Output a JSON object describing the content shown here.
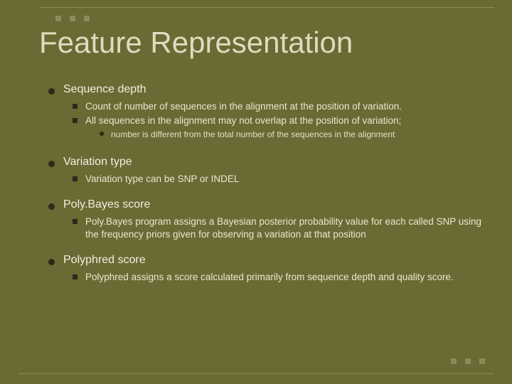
{
  "slide": {
    "bg_color": "#6a6a34",
    "text_color": "#e8e8d0",
    "accent_color": "#8a8a5a",
    "bullet_color": "#2a2a1a",
    "title": "Feature Representation",
    "title_fontsize": 42,
    "body_fontsize": 13.5,
    "sub_fontsize": 12
  },
  "sections": {
    "s1": {
      "heading": "Sequence depth",
      "b1": "Count of number of sequences in the alignment at the position of variation.",
      "b2": "All sequences in the alignment may not overlap at the position of variation;",
      "b2_sub": "number is different from the total number of the sequences in the alignment"
    },
    "s2": {
      "heading": "Variation type",
      "b1": "Variation type can be SNP or INDEL"
    },
    "s3": {
      "heading": "Poly.Bayes score",
      "b1": "Poly.Bayes program assigns a Bayesian posterior probability value for each called SNP using the frequency priors given for observing a variation at that position"
    },
    "s4": {
      "heading": "Polyphred score",
      "b1": "Polyphred assigns a score calculated primarily from sequence depth and quality score."
    }
  }
}
